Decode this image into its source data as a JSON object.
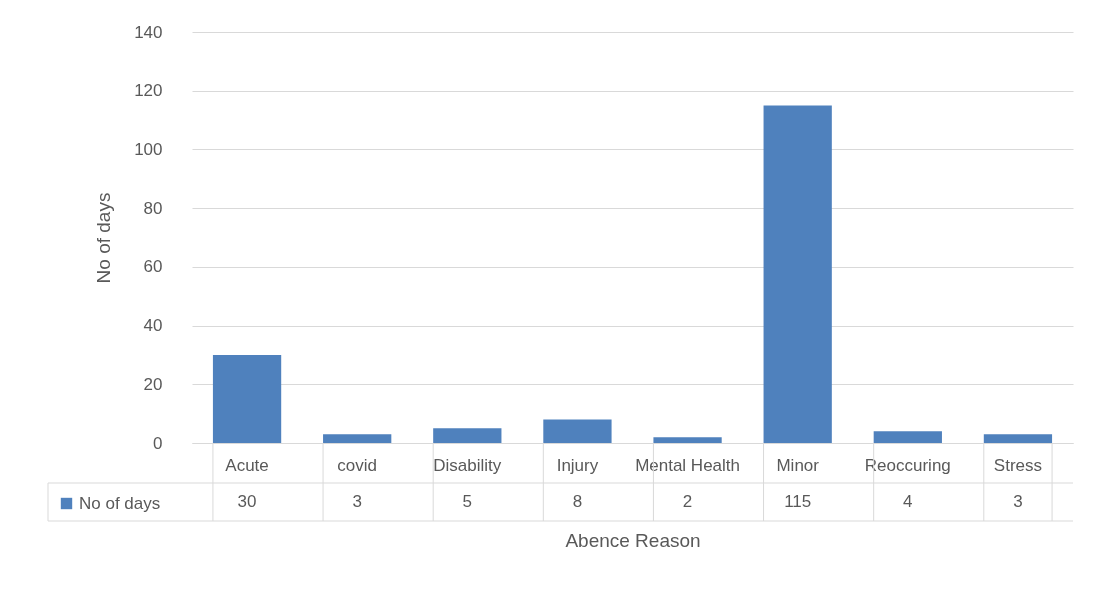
{
  "chart_data": {
    "type": "bar",
    "xlabel": "Abence Reason",
    "ylabel": "No of days",
    "categories": [
      "Acute",
      "covid",
      "Disability",
      "Injury",
      "Mental Health",
      "Minor",
      "Reoccuring",
      "Stress"
    ],
    "series": [
      {
        "name": "No of days",
        "color": "#4f81bd",
        "values": [
          30,
          3,
          5,
          8,
          2,
          115,
          4,
          3
        ]
      }
    ],
    "ylim": [
      0,
      140
    ],
    "yticks": [
      0,
      20,
      40,
      60,
      80,
      100,
      120,
      140
    ],
    "grid": "y",
    "legend": "bottom",
    "data_labels": true
  }
}
